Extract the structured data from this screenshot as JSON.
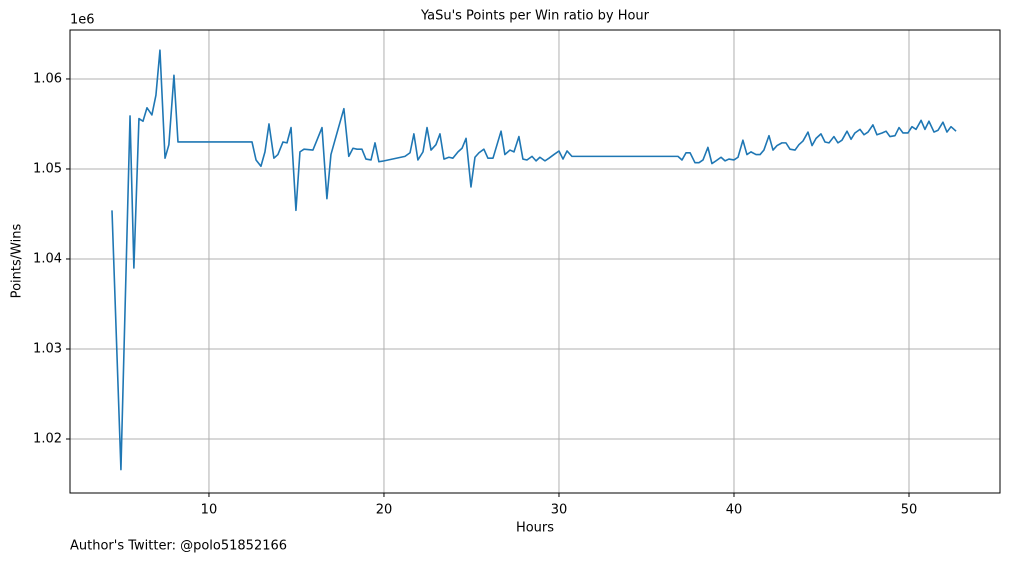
{
  "chart_data": {
    "type": "line",
    "title": "YaSu's Points per Win ratio by Hour",
    "xlabel": "Hours",
    "ylabel": "Points/Wins",
    "y_offset_label": "1e6",
    "annotation": "Author's Twitter: @polo51852166",
    "color": "#1f77b4",
    "grid": true,
    "xlim": [
      2.06,
      55.2
    ],
    "ylim": [
      1014000,
      1065440
    ],
    "xticks": [
      10,
      20,
      30,
      40,
      50
    ],
    "yticks": [
      {
        "value": 1020000,
        "label": "1.02"
      },
      {
        "value": 1030000,
        "label": "1.03"
      },
      {
        "value": 1040000,
        "label": "1.04"
      },
      {
        "value": 1050000,
        "label": "1.05"
      },
      {
        "value": 1060000,
        "label": "1.06"
      }
    ],
    "x": [
      4.46,
      4.97,
      5.49,
      5.71,
      6.0,
      6.23,
      6.46,
      6.74,
      6.97,
      7.2,
      7.49,
      7.71,
      8.0,
      8.23,
      12.46,
      12.69,
      12.97,
      13.2,
      13.43,
      13.71,
      13.94,
      14.23,
      14.46,
      14.69,
      14.97,
      15.2,
      15.43,
      15.94,
      16.17,
      16.46,
      16.74,
      16.97,
      17.2,
      17.49,
      17.71,
      17.99,
      18.23,
      18.46,
      18.74,
      18.97,
      19.26,
      19.49,
      19.71,
      20.0,
      21.2,
      21.49,
      21.71,
      21.94,
      22.23,
      22.46,
      22.69,
      22.97,
      23.2,
      23.43,
      23.71,
      23.94,
      24.23,
      24.46,
      24.69,
      24.97,
      25.2,
      25.43,
      25.71,
      25.94,
      26.23,
      26.46,
      26.69,
      26.91,
      27.2,
      27.43,
      27.71,
      27.94,
      28.17,
      28.46,
      28.69,
      28.91,
      29.2,
      29.43,
      29.71,
      30.0,
      30.23,
      30.46,
      30.74,
      36.8,
      37.03,
      37.26,
      37.49,
      37.77,
      38.0,
      38.23,
      38.51,
      38.74,
      38.97,
      39.26,
      39.49,
      39.71,
      40.0,
      40.23,
      40.51,
      40.74,
      40.97,
      41.26,
      41.49,
      41.71,
      42.0,
      42.23,
      42.46,
      42.74,
      42.97,
      43.2,
      43.49,
      43.71,
      43.94,
      44.23,
      44.46,
      44.69,
      44.97,
      45.2,
      45.43,
      45.71,
      45.94,
      46.17,
      46.46,
      46.69,
      46.91,
      47.2,
      47.43,
      47.66,
      47.94,
      48.17,
      48.46,
      48.69,
      48.91,
      49.2,
      49.43,
      49.66,
      49.94,
      50.17,
      50.4,
      50.69,
      50.91,
      51.14,
      51.43,
      51.66,
      51.94,
      52.17,
      52.4,
      52.69
    ],
    "values": [
      1045400,
      1016600,
      1055900,
      1039000,
      1055600,
      1055300,
      1056800,
      1056000,
      1058200,
      1063200,
      1051200,
      1052700,
      1060400,
      1053000,
      1053000,
      1051000,
      1050300,
      1051900,
      1055000,
      1051200,
      1051600,
      1053000,
      1052900,
      1054600,
      1045400,
      1051900,
      1052200,
      1052100,
      1053200,
      1054600,
      1046700,
      1051600,
      1053200,
      1055200,
      1056700,
      1051400,
      1052300,
      1052200,
      1052200,
      1051100,
      1051000,
      1052900,
      1050800,
      1050900,
      1051400,
      1051800,
      1053900,
      1051000,
      1051900,
      1054600,
      1052100,
      1052700,
      1053900,
      1051100,
      1051300,
      1051200,
      1051900,
      1052300,
      1053400,
      1048000,
      1051300,
      1051800,
      1052200,
      1051200,
      1051200,
      1052700,
      1054200,
      1051600,
      1052100,
      1051900,
      1053600,
      1051100,
      1051000,
      1051400,
      1050900,
      1051300,
      1050900,
      1051200,
      1051600,
      1052000,
      1051100,
      1052000,
      1051400,
      1051400,
      1051000,
      1051800,
      1051800,
      1050700,
      1050700,
      1051000,
      1052400,
      1050600,
      1050900,
      1051300,
      1050900,
      1051100,
      1051000,
      1051300,
      1053200,
      1051600,
      1051900,
      1051600,
      1051600,
      1052100,
      1053700,
      1052100,
      1052600,
      1052900,
      1052900,
      1052200,
      1052100,
      1052700,
      1053100,
      1054100,
      1052600,
      1053400,
      1053900,
      1053000,
      1052900,
      1053600,
      1052900,
      1053200,
      1054200,
      1053300,
      1054000,
      1054400,
      1053800,
      1054100,
      1054900,
      1053800,
      1054000,
      1054200,
      1053600,
      1053700,
      1054600,
      1054000,
      1054000,
      1054700,
      1054400,
      1055400,
      1054400,
      1055300,
      1054100,
      1054300,
      1055200,
      1054100,
      1054700,
      1054200
    ]
  }
}
